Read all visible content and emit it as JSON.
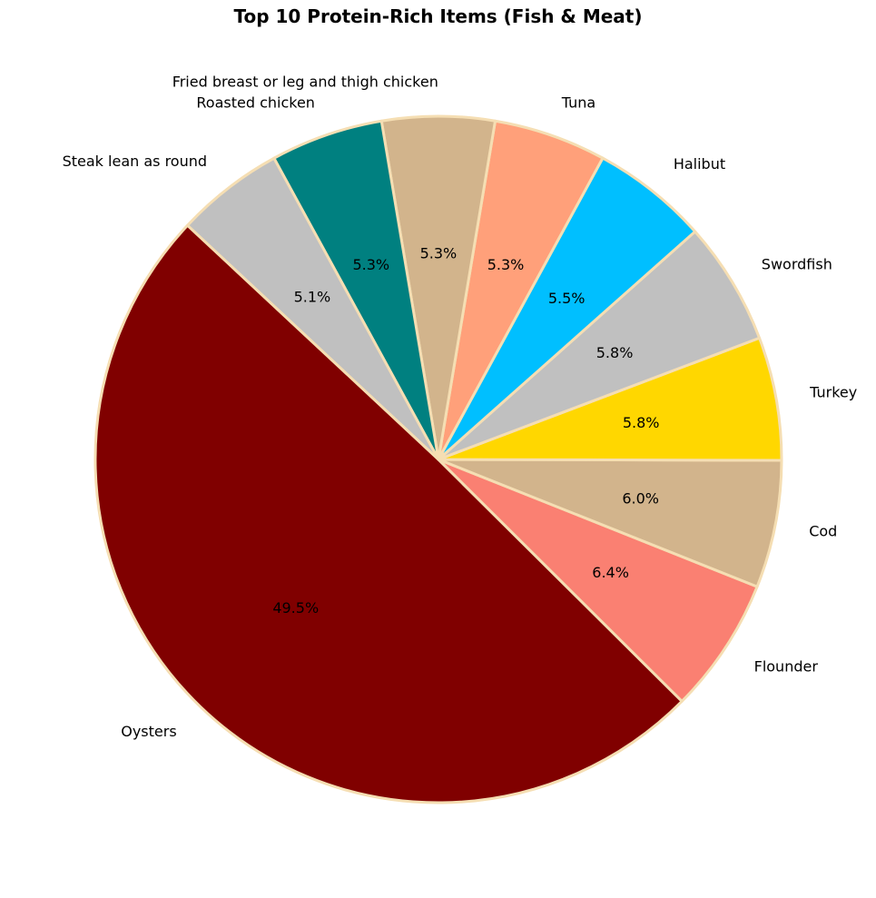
{
  "chart_data": {
    "type": "pie",
    "title": "Top 10 Protein-Rich Items (Fish & Meat)",
    "start_angle_deg": 137,
    "direction": "counterclockwise",
    "slices": [
      {
        "label": "Oysters",
        "value": 49.5,
        "pct_label": "49.5%",
        "color": "#800000"
      },
      {
        "label": "Flounder",
        "value": 6.4,
        "pct_label": "6.4%",
        "color": "#fa8072"
      },
      {
        "label": "Cod",
        "value": 6.0,
        "pct_label": "6.0%",
        "color": "#d2b48c"
      },
      {
        "label": "Turkey",
        "value": 5.8,
        "pct_label": "5.8%",
        "color": "#ffd700"
      },
      {
        "label": "Swordfish",
        "value": 5.8,
        "pct_label": "5.8%",
        "color": "#c0c0c0"
      },
      {
        "label": "Halibut",
        "value": 5.5,
        "pct_label": "5.5%",
        "color": "#00bfff"
      },
      {
        "label": "Tuna",
        "value": 5.3,
        "pct_label": "5.3%",
        "color": "#ffa07a"
      },
      {
        "label": "Fried breast or leg and thigh chicken",
        "value": 5.3,
        "pct_label": "5.3%",
        "color": "#d2b48c"
      },
      {
        "label": "Roasted chicken",
        "value": 5.3,
        "pct_label": "5.3%",
        "color": "#008080"
      },
      {
        "label": "Steak lean as round",
        "value": 5.1,
        "pct_label": "5.1%",
        "color": "#c0c0c0"
      }
    ],
    "edge_color": "#f5deb3"
  }
}
